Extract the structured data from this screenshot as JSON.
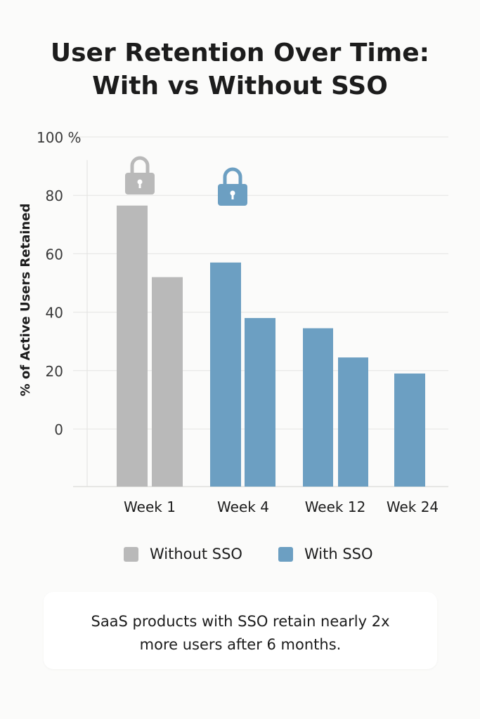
{
  "title_lines": [
    "User Retention Over Time:",
    "With vs Without SSO"
  ],
  "note_lines": [
    "SaaS products with SSO retain nearly 2x",
    "more users after 6 months."
  ],
  "legend": [
    {
      "label": "Without SSO",
      "color": "#b9b9b9"
    },
    {
      "label": "With SSO",
      "color": "#6c9fc2"
    }
  ],
  "icons": [
    {
      "name": "padlock-icon-gray",
      "color": "#b9b9b9"
    },
    {
      "name": "padlock-icon-blue",
      "color": "#6c9fc2"
    }
  ],
  "chart_data": {
    "type": "bar",
    "title": "User Retention Over Time: With vs Without SSO",
    "ylabel": "% of Active Users Retained",
    "xlabel": "",
    "y_tick_labels": [
      "100 %",
      "80",
      "60",
      "40",
      "20",
      "0"
    ],
    "ylim": [
      0,
      100
    ],
    "grid": true,
    "legend_position": "bottom",
    "groups": [
      {
        "label": "Week 1",
        "bars": [
          {
            "series": "Without SSO",
            "value": 76.5
          },
          {
            "series": "Without SSO",
            "value": 52
          }
        ]
      },
      {
        "label": "Week 4",
        "bars": [
          {
            "series": "With SSO",
            "value": 57
          },
          {
            "series": "With SSO",
            "value": 38
          }
        ]
      },
      {
        "label": "Week 12",
        "bars": [
          {
            "series": "With SSO",
            "value": 34.5
          },
          {
            "series": "With SSO",
            "value": 24.5
          }
        ]
      },
      {
        "label": "Wek 24",
        "bars": [
          {
            "series": "With SSO",
            "value": 19
          }
        ]
      }
    ]
  }
}
